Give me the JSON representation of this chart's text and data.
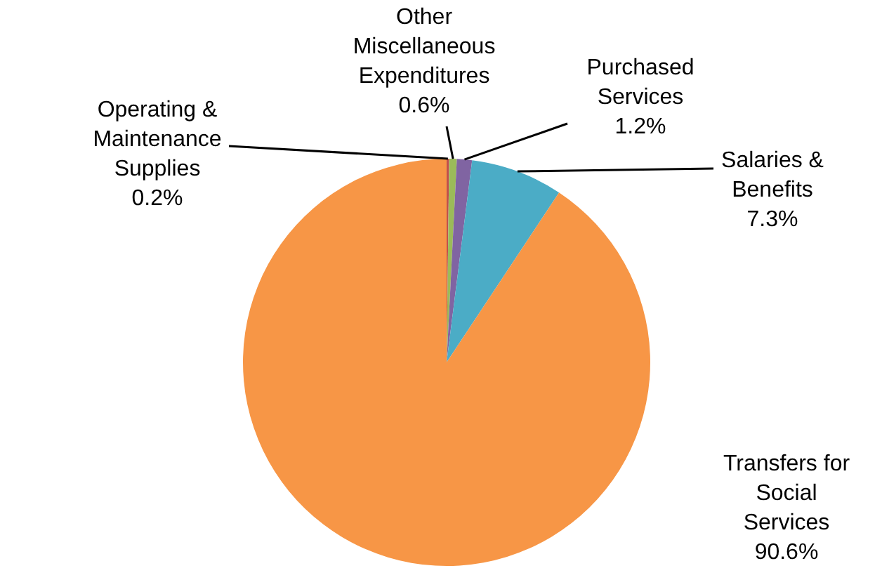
{
  "chart_data": {
    "type": "pie",
    "categories": [
      "Operating & Maintenance Supplies",
      "Other Miscellaneous Expenditures",
      "Purchased Services",
      "Salaries & Benefits",
      "Transfers for Social Services"
    ],
    "values": [
      0.2,
      0.6,
      1.2,
      7.3,
      90.6
    ],
    "colors": [
      "#c0504d",
      "#9bbb59",
      "#8064a2",
      "#4bacc6",
      "#f79646"
    ],
    "value_labels": [
      "0.2%",
      "0.6%",
      "1.2%",
      "7.3%",
      "90.6%"
    ]
  }
}
